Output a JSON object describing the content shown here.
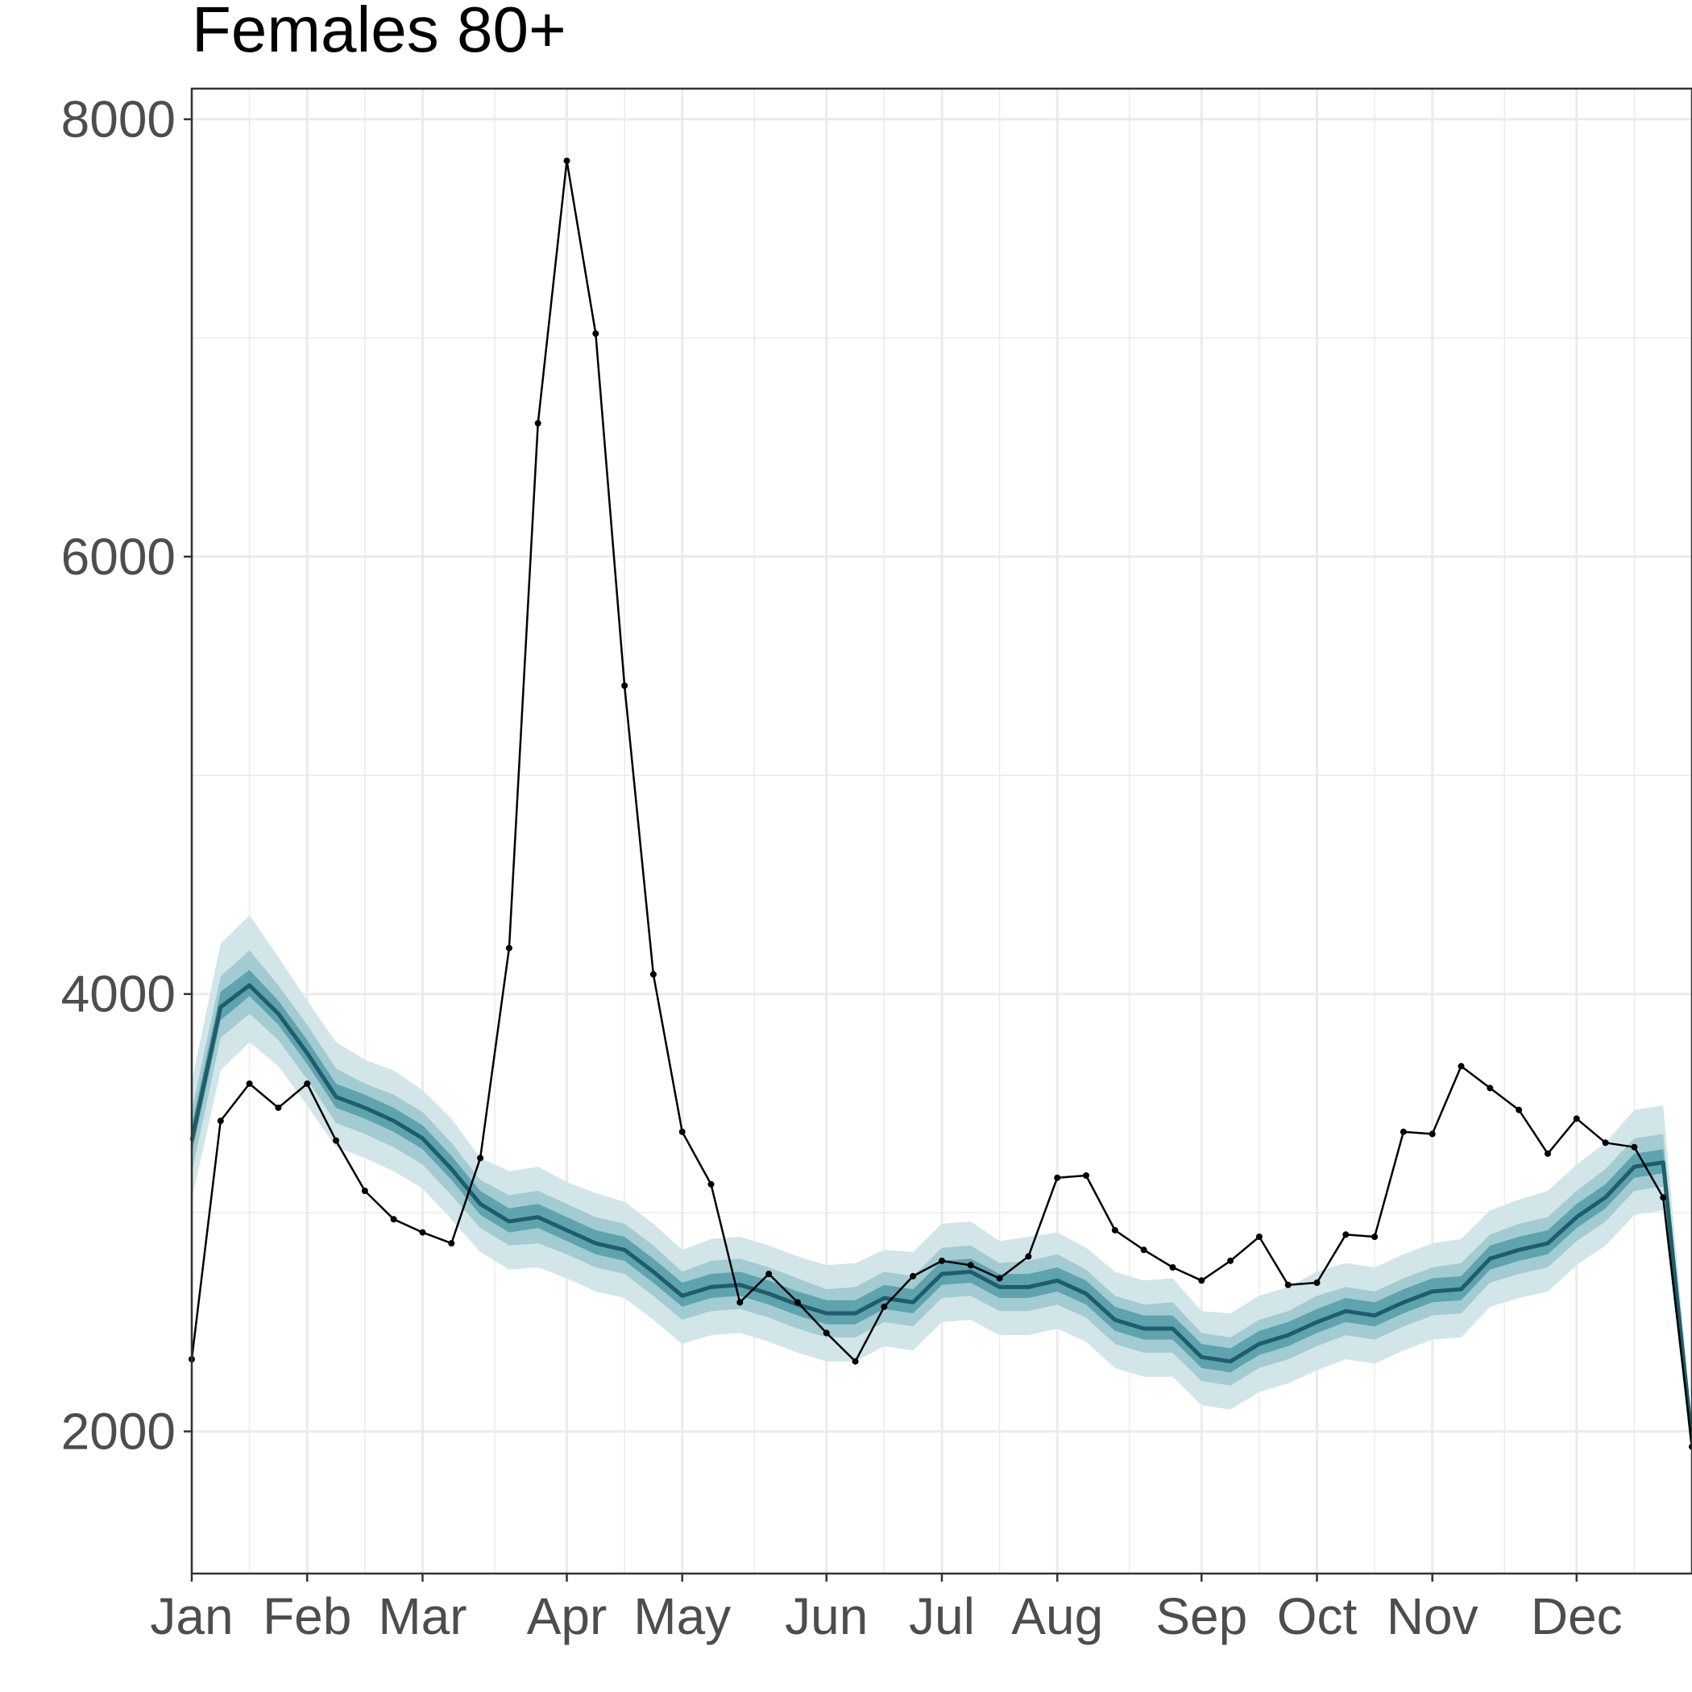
{
  "chart_data": {
    "type": "line",
    "title": "Females 80+",
    "xlabel": "",
    "ylabel": "",
    "xlim_weeks": [
      1,
      53
    ],
    "ylim": [
      1350,
      8140
    ],
    "x_ticks": [
      {
        "label": "Jan",
        "week": 1
      },
      {
        "label": "Feb",
        "week": 5
      },
      {
        "label": "Mar",
        "week": 9
      },
      {
        "label": "Apr",
        "week": 14
      },
      {
        "label": "May",
        "week": 18
      },
      {
        "label": "Jun",
        "week": 23
      },
      {
        "label": "Jul",
        "week": 27
      },
      {
        "label": "Aug",
        "week": 31
      },
      {
        "label": "Sep",
        "week": 36
      },
      {
        "label": "Oct",
        "week": 40
      },
      {
        "label": "Nov",
        "week": 44
      },
      {
        "label": "Dec",
        "week": 49
      }
    ],
    "y_ticks": [
      2000,
      4000,
      6000,
      8000
    ],
    "grid": true,
    "legend": "none",
    "colors": {
      "band_outer": "#d2e5e8",
      "band_mid": "#a3cbd2",
      "band_inner": "#5fa3ae",
      "median_line": "#1e5d69",
      "observed": "#000000",
      "grid": "#ebebeb",
      "axis_text": "#4d4d4d"
    },
    "series": [
      {
        "role": "expected_median_with_intervals",
        "x_week": [
          1,
          2,
          3,
          4,
          5,
          6,
          7,
          8,
          9,
          10,
          11,
          12,
          13,
          14,
          15,
          16,
          17,
          18,
          19,
          20,
          21,
          22,
          23,
          24,
          25,
          26,
          27,
          28,
          29,
          30,
          31,
          32,
          33,
          34,
          35,
          36,
          37,
          38,
          39,
          40,
          41,
          42,
          43,
          44,
          45,
          46,
          47,
          48,
          49,
          50,
          51,
          52,
          53
        ],
        "median": [
          3330,
          3940,
          4040,
          3910,
          3730,
          3530,
          3480,
          3420,
          3340,
          3200,
          3040,
          2960,
          2980,
          2920,
          2860,
          2830,
          2730,
          2620,
          2660,
          2670,
          2630,
          2580,
          2540,
          2540,
          2610,
          2590,
          2720,
          2730,
          2660,
          2660,
          2690,
          2630,
          2510,
          2470,
          2470,
          2340,
          2320,
          2400,
          2440,
          2500,
          2550,
          2530,
          2590,
          2640,
          2650,
          2790,
          2830,
          2860,
          2980,
          3070,
          3210,
          3230,
          1950
        ],
        "interval_80_lower": [
          3060,
          3650,
          3780,
          3670,
          3490,
          3300,
          3250,
          3190,
          3110,
          2970,
          2820,
          2740,
          2750,
          2700,
          2640,
          2610,
          2510,
          2400,
          2440,
          2450,
          2410,
          2360,
          2320,
          2320,
          2390,
          2370,
          2500,
          2510,
          2440,
          2440,
          2470,
          2410,
          2290,
          2250,
          2250,
          2120,
          2100,
          2180,
          2220,
          2280,
          2330,
          2310,
          2370,
          2420,
          2430,
          2570,
          2610,
          2640,
          2760,
          2850,
          2990,
          3010,
          1880
        ],
        "interval_80_upper": [
          3600,
          4230,
          4360,
          4170,
          3970,
          3780,
          3700,
          3650,
          3560,
          3430,
          3250,
          3190,
          3210,
          3140,
          3090,
          3050,
          2950,
          2830,
          2880,
          2890,
          2850,
          2800,
          2760,
          2770,
          2830,
          2820,
          2950,
          2960,
          2870,
          2890,
          2910,
          2840,
          2730,
          2690,
          2700,
          2550,
          2540,
          2620,
          2660,
          2730,
          2770,
          2750,
          2810,
          2860,
          2880,
          3010,
          3060,
          3100,
          3220,
          3320,
          3470,
          3490,
          2020
        ],
        "interval_50_lower": [
          3180,
          3800,
          3910,
          3790,
          3610,
          3410,
          3360,
          3300,
          3220,
          3080,
          2930,
          2850,
          2860,
          2810,
          2750,
          2720,
          2620,
          2510,
          2550,
          2560,
          2520,
          2470,
          2430,
          2430,
          2500,
          2480,
          2610,
          2620,
          2550,
          2550,
          2580,
          2520,
          2400,
          2360,
          2360,
          2230,
          2210,
          2290,
          2330,
          2390,
          2440,
          2420,
          2480,
          2530,
          2540,
          2680,
          2720,
          2750,
          2870,
          2960,
          3100,
          3120,
          1920
        ],
        "interval_50_upper": [
          3470,
          4080,
          4200,
          4040,
          3860,
          3660,
          3590,
          3540,
          3460,
          3320,
          3150,
          3080,
          3100,
          3040,
          2980,
          2950,
          2850,
          2730,
          2780,
          2790,
          2750,
          2700,
          2650,
          2660,
          2730,
          2710,
          2840,
          2850,
          2770,
          2780,
          2810,
          2740,
          2620,
          2580,
          2590,
          2450,
          2430,
          2510,
          2550,
          2620,
          2660,
          2640,
          2700,
          2750,
          2770,
          2900,
          2950,
          2980,
          3100,
          3200,
          3340,
          3360,
          1990
        ],
        "interval_20_lower": [
          3270,
          3880,
          3990,
          3860,
          3680,
          3480,
          3430,
          3370,
          3290,
          3150,
          2990,
          2910,
          2930,
          2870,
          2810,
          2780,
          2680,
          2570,
          2610,
          2620,
          2580,
          2530,
          2490,
          2490,
          2560,
          2540,
          2670,
          2680,
          2610,
          2610,
          2640,
          2580,
          2460,
          2420,
          2420,
          2290,
          2270,
          2350,
          2390,
          2450,
          2500,
          2480,
          2540,
          2590,
          2600,
          2740,
          2780,
          2810,
          2930,
          3020,
          3160,
          3180,
          1940
        ],
        "interval_20_upper": [
          3400,
          4010,
          4110,
          3970,
          3790,
          3590,
          3540,
          3480,
          3400,
          3260,
          3100,
          3020,
          3040,
          2980,
          2920,
          2890,
          2790,
          2680,
          2720,
          2730,
          2690,
          2640,
          2600,
          2600,
          2670,
          2650,
          2780,
          2790,
          2720,
          2720,
          2750,
          2690,
          2570,
          2530,
          2530,
          2400,
          2380,
          2460,
          2500,
          2560,
          2610,
          2590,
          2650,
          2700,
          2710,
          2850,
          2890,
          2920,
          3040,
          3130,
          3270,
          3290,
          1960
        ]
      },
      {
        "role": "observed",
        "x_week": [
          1,
          2,
          3,
          4,
          5,
          6,
          7,
          8,
          9,
          10,
          11,
          12,
          13,
          14,
          15,
          16,
          17,
          18,
          19,
          20,
          21,
          22,
          23,
          24,
          25,
          26,
          27,
          28,
          29,
          30,
          31,
          32,
          33,
          34,
          35,
          36,
          37,
          38,
          39,
          40,
          41,
          42,
          43,
          44,
          45,
          46,
          47,
          48,
          49,
          50,
          51,
          52,
          53
        ],
        "values": [
          2330,
          3420,
          3590,
          3480,
          3590,
          3330,
          3100,
          2970,
          2910,
          2860,
          3250,
          4210,
          6610,
          7810,
          7020,
          5410,
          4090,
          3370,
          3130,
          2590,
          2720,
          2590,
          2450,
          2320,
          2570,
          2710,
          2780,
          2760,
          2700,
          2800,
          3160,
          3170,
          2920,
          2830,
          2750,
          2690,
          2780,
          2890,
          2670,
          2680,
          2900,
          2890,
          3370,
          3360,
          3670,
          3570,
          3470,
          3270,
          3430,
          3320,
          3300,
          3070,
          1930
        ]
      }
    ]
  }
}
